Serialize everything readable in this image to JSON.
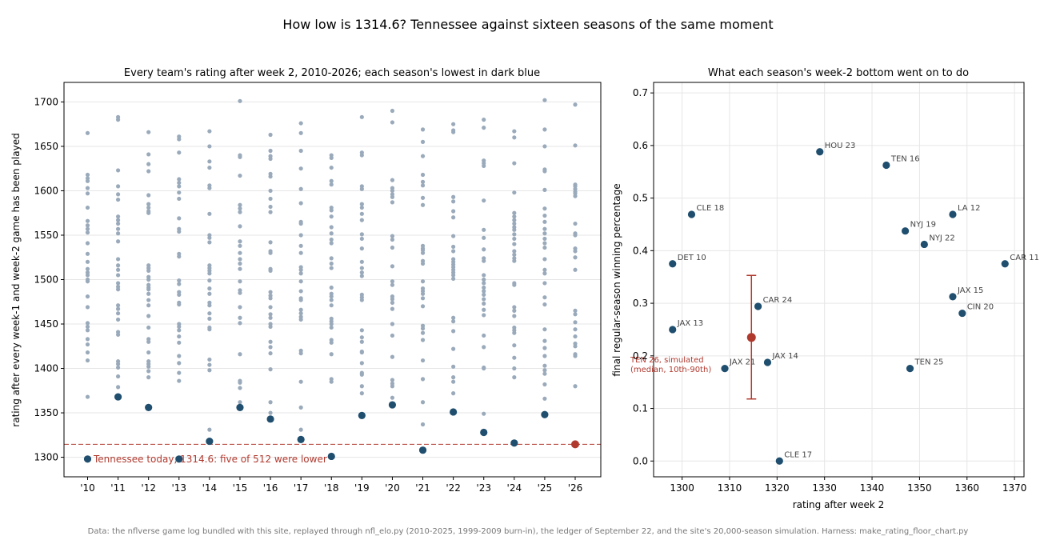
{
  "figure": {
    "title": "How low is 1314.6? Tennessee against sixteen seasons of the same moment",
    "footer": "Data: the nflverse game log bundled with this site, replayed through nfl_elo.py (2010-2025, 1999-2009 burn-in), the ledger of September 22, and the site's 20,000-season simulation. Harness: make_rating_floor_chart.py"
  },
  "colors": {
    "grey_dots": "#9aaabb",
    "dark_blue": "#1f4e6e",
    "red": "#b0392e",
    "grid": "#e6e6e6"
  },
  "chart_data": [
    {
      "type": "scatter",
      "title": "Every team's rating after week 2, 2010-2026; each season's lowest in dark blue",
      "xlabel": "",
      "ylabel": "rating after every week-1 and week-2 game has been played",
      "ylim": [
        1278,
        1722
      ],
      "grid": true,
      "categories": [
        "'10",
        "'11",
        "'12",
        "'13",
        "'14",
        "'15",
        "'16",
        "'17",
        "'18",
        "'19",
        "'20",
        "'21",
        "'22",
        "'23",
        "'24",
        "'25",
        "'26"
      ],
      "yticks": [
        1300,
        1350,
        1400,
        1450,
        1500,
        1550,
        1600,
        1650,
        1700
      ],
      "teams": [
        [
          1665,
          1618,
          1614,
          1611,
          1603,
          1597,
          1581,
          1566,
          1561,
          1557,
          1553,
          1541,
          1529,
          1520,
          1512,
          1508,
          1505,
          1500,
          1498,
          1481,
          1469,
          1451,
          1447,
          1443,
          1433,
          1427,
          1418,
          1409,
          1368
        ],
        [
          1683,
          1680,
          1623,
          1605,
          1596,
          1590,
          1571,
          1567,
          1563,
          1557,
          1552,
          1543,
          1523,
          1516,
          1511,
          1505,
          1496,
          1492,
          1489,
          1471,
          1467,
          1462,
          1455,
          1441,
          1438,
          1408,
          1405,
          1401,
          1391,
          1379
        ],
        [
          1666,
          1641,
          1630,
          1622,
          1595,
          1585,
          1581,
          1577,
          1575,
          1516,
          1513,
          1510,
          1503,
          1500,
          1494,
          1491,
          1489,
          1484,
          1477,
          1471,
          1459,
          1446,
          1433,
          1430,
          1418,
          1408,
          1405,
          1402,
          1397,
          1390
        ],
        [
          1661,
          1658,
          1643,
          1613,
          1609,
          1605,
          1598,
          1591,
          1569,
          1557,
          1554,
          1529,
          1526,
          1499,
          1495,
          1486,
          1483,
          1474,
          1472,
          1450,
          1447,
          1443,
          1436,
          1429,
          1414,
          1406,
          1395,
          1386
        ],
        [
          1667,
          1650,
          1633,
          1626,
          1606,
          1603,
          1574,
          1550,
          1547,
          1542,
          1516,
          1513,
          1510,
          1507,
          1499,
          1490,
          1484,
          1474,
          1471,
          1462,
          1456,
          1446,
          1444,
          1410,
          1404,
          1398,
          1331
        ],
        [
          1701,
          1640,
          1638,
          1617,
          1584,
          1580,
          1576,
          1560,
          1543,
          1538,
          1530,
          1523,
          1518,
          1512,
          1498,
          1488,
          1485,
          1469,
          1457,
          1451,
          1416,
          1386,
          1384,
          1378,
          1362
        ],
        [
          1663,
          1645,
          1639,
          1636,
          1619,
          1616,
          1600,
          1591,
          1582,
          1576,
          1542,
          1532,
          1530,
          1512,
          1510,
          1486,
          1482,
          1479,
          1469,
          1461,
          1457,
          1450,
          1447,
          1430,
          1424,
          1417,
          1399,
          1362,
          1350
        ],
        [
          1676,
          1665,
          1645,
          1625,
          1602,
          1586,
          1565,
          1563,
          1550,
          1538,
          1530,
          1514,
          1511,
          1507,
          1498,
          1487,
          1479,
          1477,
          1466,
          1462,
          1458,
          1455,
          1420,
          1417,
          1385,
          1356,
          1331
        ],
        [
          1640,
          1637,
          1626,
          1611,
          1607,
          1581,
          1578,
          1571,
          1559,
          1552,
          1545,
          1541,
          1524,
          1518,
          1513,
          1491,
          1484,
          1481,
          1477,
          1471,
          1456,
          1453,
          1450,
          1446,
          1432,
          1429,
          1416,
          1388,
          1385
        ],
        [
          1683,
          1643,
          1640,
          1605,
          1602,
          1585,
          1581,
          1574,
          1567,
          1551,
          1546,
          1535,
          1520,
          1513,
          1508,
          1504,
          1483,
          1480,
          1477,
          1443,
          1435,
          1430,
          1419,
          1418,
          1406,
          1395,
          1393,
          1380,
          1372
        ],
        [
          1690,
          1677,
          1612,
          1603,
          1600,
          1596,
          1593,
          1587,
          1549,
          1545,
          1536,
          1515,
          1498,
          1494,
          1481,
          1478,
          1474,
          1467,
          1450,
          1437,
          1413,
          1387,
          1383,
          1380,
          1367
        ],
        [
          1669,
          1655,
          1639,
          1618,
          1610,
          1606,
          1592,
          1584,
          1538,
          1535,
          1533,
          1530,
          1521,
          1518,
          1498,
          1490,
          1487,
          1484,
          1479,
          1470,
          1448,
          1445,
          1440,
          1432,
          1409,
          1388,
          1362,
          1337
        ],
        [
          1675,
          1668,
          1666,
          1593,
          1588,
          1577,
          1570,
          1549,
          1537,
          1532,
          1523,
          1520,
          1517,
          1514,
          1511,
          1508,
          1505,
          1501,
          1457,
          1453,
          1442,
          1422,
          1402,
          1390,
          1385,
          1372
        ],
        [
          1680,
          1671,
          1634,
          1631,
          1628,
          1589,
          1556,
          1547,
          1534,
          1524,
          1521,
          1505,
          1500,
          1496,
          1491,
          1487,
          1483,
          1478,
          1473,
          1466,
          1460,
          1437,
          1424,
          1401,
          1400,
          1349
        ],
        [
          1667,
          1660,
          1631,
          1598,
          1575,
          1571,
          1567,
          1563,
          1559,
          1556,
          1551,
          1546,
          1540,
          1532,
          1528,
          1524,
          1521,
          1496,
          1494,
          1469,
          1465,
          1459,
          1446,
          1443,
          1440,
          1426,
          1412,
          1400,
          1390
        ],
        [
          1702,
          1669,
          1650,
          1624,
          1622,
          1601,
          1580,
          1572,
          1565,
          1557,
          1552,
          1546,
          1541,
          1536,
          1523,
          1511,
          1507,
          1496,
          1480,
          1472,
          1444,
          1431,
          1423,
          1414,
          1403,
          1398,
          1394,
          1382,
          1366
        ],
        [
          1697,
          1651,
          1607,
          1605,
          1602,
          1599,
          1597,
          1594,
          1563,
          1552,
          1550,
          1535,
          1532,
          1525,
          1511,
          1465,
          1461,
          1452,
          1444,
          1436,
          1428,
          1425,
          1416,
          1414,
          1380
        ]
      ],
      "season_lows": [
        1298,
        1368,
        1356,
        1298,
        1318,
        1356,
        1343,
        1320,
        1301,
        1347,
        1359,
        1308,
        1351,
        1328,
        1316,
        1348
      ],
      "tennessee_today": 1314.6,
      "reference_label": "Tennessee today, 1314.6: five of 512 were lower"
    },
    {
      "type": "scatter",
      "title": "What each season's week-2 bottom went on to do",
      "xlabel": "rating after week 2",
      "ylabel": "final regular-season winning percentage",
      "xlim": [
        1294,
        1372
      ],
      "ylim": [
        -0.03,
        0.72
      ],
      "grid": true,
      "xticks": [
        1300,
        1310,
        1320,
        1330,
        1340,
        1350,
        1360,
        1370
      ],
      "yticks": [
        0.0,
        0.1,
        0.2,
        0.3,
        0.4,
        0.5,
        0.6,
        0.7
      ],
      "points": [
        {
          "label": "HOU 23",
          "x": 1329,
          "y": 0.588
        },
        {
          "label": "TEN 16",
          "x": 1343,
          "y": 0.5625
        },
        {
          "label": "CLE 18",
          "x": 1302,
          "y": 0.469
        },
        {
          "label": "LA 12",
          "x": 1357,
          "y": 0.469
        },
        {
          "label": "NYJ 19",
          "x": 1347,
          "y": 0.4375
        },
        {
          "label": "NYJ 22",
          "x": 1351,
          "y": 0.412
        },
        {
          "label": "DET 10",
          "x": 1298,
          "y": 0.375
        },
        {
          "label": "CAR 11",
          "x": 1368,
          "y": 0.375
        },
        {
          "label": "JAX 15",
          "x": 1357,
          "y": 0.3125
        },
        {
          "label": "CAR 24",
          "x": 1316,
          "y": 0.294
        },
        {
          "label": "CIN 20",
          "x": 1359,
          "y": 0.281
        },
        {
          "label": "JAX 13",
          "x": 1298,
          "y": 0.25
        },
        {
          "label": "JAX 14",
          "x": 1318,
          "y": 0.1875
        },
        {
          "label": "JAX 21",
          "x": 1309,
          "y": 0.176
        },
        {
          "label": "TEN 25",
          "x": 1348,
          "y": 0.176
        },
        {
          "label": "CLE 17",
          "x": 1320.5,
          "y": 0.0
        }
      ],
      "simulated": {
        "label_line1": "TEN 26, simulated",
        "label_line2": "(median, 10th-90th)",
        "x": 1314.6,
        "median": 0.235,
        "p10": 0.118,
        "p90": 0.353
      }
    }
  ]
}
